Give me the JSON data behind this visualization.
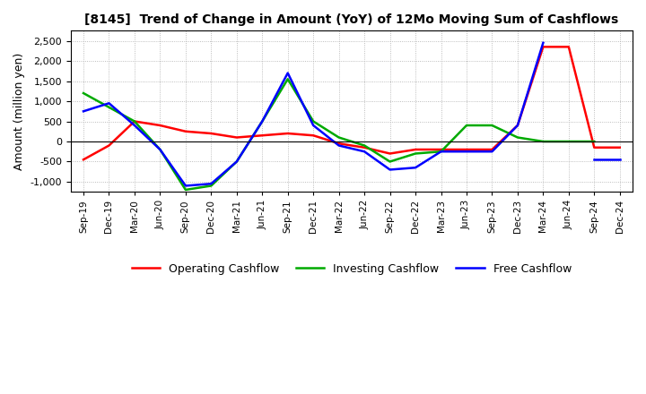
{
  "title": "[8145]  Trend of Change in Amount (YoY) of 12Mo Moving Sum of Cashflows",
  "ylabel": "Amount (million yen)",
  "x_labels": [
    "Sep-19",
    "Dec-19",
    "Mar-20",
    "Jun-20",
    "Sep-20",
    "Dec-20",
    "Mar-21",
    "Jun-21",
    "Sep-21",
    "Dec-21",
    "Mar-22",
    "Jun-22",
    "Sep-22",
    "Dec-22",
    "Mar-23",
    "Jun-23",
    "Sep-23",
    "Dec-23",
    "Mar-24",
    "Jun-24",
    "Sep-24",
    "Dec-24"
  ],
  "operating": [
    -450,
    -100,
    500,
    400,
    250,
    200,
    100,
    150,
    200,
    150,
    -50,
    -150,
    -300,
    -200,
    -200,
    -200,
    -200,
    400,
    2350,
    2350,
    -150,
    -150
  ],
  "investing": [
    1200,
    850,
    500,
    -200,
    -1200,
    -1100,
    -500,
    500,
    1550,
    500,
    100,
    -100,
    -500,
    -300,
    -250,
    400,
    400,
    100,
    0,
    0,
    0,
    null
  ],
  "free": [
    750,
    950,
    400,
    -200,
    -1100,
    -1050,
    -500,
    500,
    1700,
    400,
    -100,
    -250,
    -700,
    -650,
    -250,
    -250,
    -250,
    400,
    2450,
    null,
    -450,
    -450
  ],
  "ylim": [
    -1250,
    2750
  ],
  "yticks": [
    -1000,
    -500,
    0,
    500,
    1000,
    1500,
    2000,
    2500
  ],
  "colors": {
    "operating": "#FF0000",
    "investing": "#00AA00",
    "free": "#0000FF"
  },
  "legend_labels": [
    "Operating Cashflow",
    "Investing Cashflow",
    "Free Cashflow"
  ],
  "bg_color": "#FFFFFF",
  "grid_color": "#BBBBBB"
}
